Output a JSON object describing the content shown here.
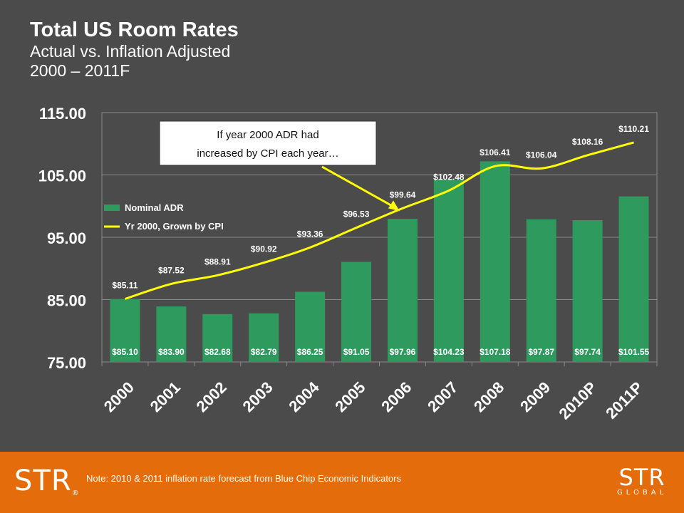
{
  "header": {
    "title": "Total US Room Rates",
    "subtitle_line1": "Actual vs. Inflation Adjusted",
    "subtitle_line2": "2000 – 2011F"
  },
  "chart_data": {
    "type": "bar",
    "categories": [
      "2000",
      "2001",
      "2002",
      "2003",
      "2004",
      "2005",
      "2006",
      "2007",
      "2008",
      "2009",
      "2010P",
      "2011P"
    ],
    "series": [
      {
        "name": "Nominal ADR",
        "type": "bar",
        "color": "#2e9a5e",
        "values": [
          85.1,
          83.9,
          82.68,
          82.79,
          86.25,
          91.05,
          97.96,
          104.23,
          107.18,
          97.87,
          97.74,
          101.55
        ],
        "labels": [
          "$85.10",
          "$83.90",
          "$82.68",
          "$82.79",
          "$86.25",
          "$91.05",
          "$97.96",
          "$104.23",
          "$107.18",
          "$97.87",
          "$97.74",
          "$101.55"
        ]
      },
      {
        "name": "Yr 2000, Grown by CPI",
        "type": "line",
        "color": "#ffff00",
        "values": [
          85.11,
          87.52,
          88.91,
          90.92,
          93.36,
          96.53,
          99.64,
          102.48,
          106.41,
          106.04,
          108.16,
          110.21
        ],
        "labels": [
          "$85.11",
          "$87.52",
          "$88.91",
          "$90.92",
          "$93.36",
          "$96.53",
          "$99.64",
          "$102.48",
          "$106.41",
          "$106.04",
          "$108.16",
          "$110.21"
        ]
      }
    ],
    "ylim": [
      75,
      115
    ],
    "yticks": [
      "75.00",
      "85.00",
      "95.00",
      "105.00",
      "115.00"
    ],
    "grid": true,
    "legend": "left-middle",
    "annotation": {
      "line1": "If year 2000 ADR had",
      "line2": "increased by CPI each year…",
      "points_to": "2006"
    }
  },
  "footer": {
    "note": "Note: 2010 & 2011 inflation rate forecast from Blue Chip Economic Indicators",
    "logo_left": "STR",
    "logo_left_mark": "®",
    "logo_right": "STR",
    "logo_right_sub": "GLOBAL"
  }
}
